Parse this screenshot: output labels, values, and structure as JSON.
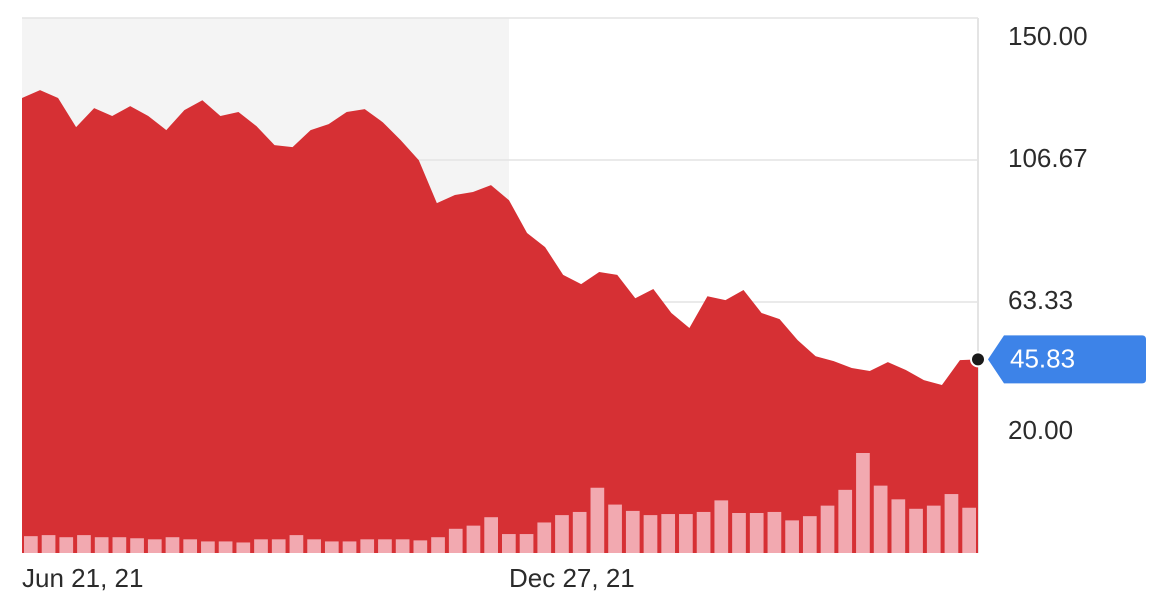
{
  "chart_data": {
    "type": "area",
    "categories": [
      "Jun 21, 21",
      null,
      null,
      null,
      null,
      null,
      null,
      null,
      null,
      null,
      null,
      null,
      null,
      null,
      null,
      null,
      null,
      null,
      null,
      null,
      null,
      null,
      null,
      null,
      null,
      null,
      null,
      "Dec 27, 21",
      null,
      null,
      null,
      null,
      null,
      null,
      null,
      null,
      null,
      null,
      null,
      null,
      null,
      null,
      null,
      null,
      null,
      null,
      null,
      null,
      null,
      null,
      null,
      null,
      null,
      null
    ],
    "values": [
      125.6,
      128.0,
      125.6,
      116.7,
      122.5,
      120.1,
      123.1,
      120.1,
      115.8,
      121.9,
      124.9,
      120.1,
      121.3,
      117.0,
      111.2,
      110.6,
      115.8,
      117.6,
      121.3,
      122.2,
      118.2,
      112.7,
      106.6,
      93.5,
      96.0,
      96.9,
      99.0,
      94.4,
      84.4,
      80.1,
      71.6,
      68.8,
      72.5,
      71.6,
      64.5,
      67.3,
      60.0,
      55.4,
      65.1,
      63.9,
      67.0,
      60.0,
      58.1,
      51.7,
      46.8,
      45.3,
      43.2,
      42.3,
      45.0,
      42.6,
      39.5,
      38.0,
      45.6,
      45.83
    ],
    "color": "#d63034",
    "volume": [
      16,
      17,
      15,
      17,
      15,
      15,
      14,
      13,
      15,
      13,
      11,
      11,
      10,
      13,
      13,
      17,
      13,
      11,
      11,
      13,
      13,
      13,
      12,
      15,
      23,
      26,
      34,
      18,
      18,
      29,
      36,
      39,
      62,
      46,
      40,
      36,
      37,
      37,
      39,
      50,
      38,
      38,
      39,
      31,
      35,
      45,
      60,
      95,
      64,
      51,
      42,
      45,
      56,
      43
    ],
    "volume_color": "#f2a9b0",
    "ylim": [
      -13.25,
      150
    ],
    "yticks": [
      {
        "value": 150,
        "label": "150.00"
      },
      {
        "value": 106.67,
        "label": "106.67"
      },
      {
        "value": 63.33,
        "label": "63.33"
      },
      {
        "value": 20,
        "label": "20.00"
      }
    ],
    "grid": true,
    "last_price_color": "#3d83e8"
  }
}
